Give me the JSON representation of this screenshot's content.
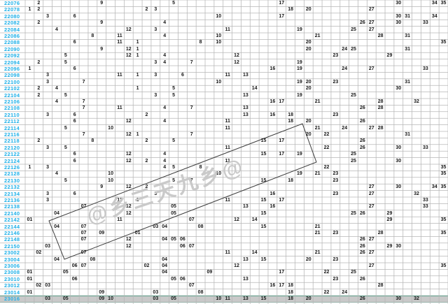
{
  "chart_data": {
    "type": "table",
    "title": "Lottery trend chart (issues 22076-23016, even issues)",
    "layout_hint": "47 number columns: columns 1-12 = zone of numbers 01-12 (2 hits per draw), columns 13-47 = zone of numbers 01-35 (5 hits per draw); each drawn number is printed in its own column; last gray row is a highlighted selection row",
    "sections": {
      "zone1_numbers": 12,
      "zone2_numbers": 35
    },
    "watermark_text": "@乡三天九乡@",
    "colors": {
      "row_label": "#1fb0e8",
      "grid_line": "#b6b6b6",
      "number": "#161616",
      "highlight_row_bg": "#c9c9c9",
      "highlight_row_border": "#35a07c",
      "trend_line": "#3c3c3c",
      "background": "#ffffff"
    },
    "trend_parallelogram_points": "70,316 432,177 452,232 92,371",
    "rows": [
      {
        "issue": "22076",
        "zone1": [
          2,
          9
        ],
        "zone2": [
          5,
          17,
          30,
          34,
          35
        ],
        "padded": false,
        "highlight": false
      },
      {
        "issue": "22078",
        "zone1": [
          1,
          2
        ],
        "zone2": [
          2,
          3,
          18,
          20,
          27
        ],
        "padded": false,
        "highlight": false
      },
      {
        "issue": "22080",
        "zone1": [
          3,
          6
        ],
        "zone2": [
          10,
          17,
          30,
          31,
          34
        ],
        "padded": false,
        "highlight": false
      },
      {
        "issue": "22082",
        "zone1": [
          2,
          9
        ],
        "zone2": [
          4,
          26,
          27,
          30,
          33
        ],
        "padded": false,
        "highlight": false
      },
      {
        "issue": "22084",
        "zone1": [
          4,
          12
        ],
        "zone2": [
          3,
          11,
          19,
          25,
          27
        ],
        "padded": false,
        "highlight": false
      },
      {
        "issue": "22086",
        "zone1": [
          8,
          11
        ],
        "zone2": [
          4,
          10,
          21,
          28,
          31
        ],
        "padded": false,
        "highlight": false
      },
      {
        "issue": "22088",
        "zone1": [
          6,
          11
        ],
        "zone2": [
          1,
          8,
          10,
          20,
          35
        ],
        "padded": false,
        "highlight": false
      },
      {
        "issue": "22090",
        "zone1": [
          9,
          12
        ],
        "zone2": [
          1,
          20,
          24,
          25,
          31
        ],
        "padded": false,
        "highlight": false
      },
      {
        "issue": "22092",
        "zone1": [
          5,
          12
        ],
        "zone2": [
          1,
          4,
          12,
          23,
          29
        ],
        "padded": false,
        "highlight": false
      },
      {
        "issue": "22094",
        "zone1": [
          2,
          5
        ],
        "zone2": [
          3,
          4,
          7,
          12,
          19
        ],
        "padded": false,
        "highlight": false
      },
      {
        "issue": "22096",
        "zone1": [
          1,
          6
        ],
        "zone2": [
          16,
          19,
          24,
          27,
          33
        ],
        "padded": false,
        "highlight": false
      },
      {
        "issue": "22098",
        "zone1": [
          3,
          11
        ],
        "zone2": [
          1,
          3,
          6,
          11,
          13
        ],
        "padded": false,
        "highlight": false
      },
      {
        "issue": "22100",
        "zone1": [
          3,
          7
        ],
        "zone2": [
          10,
          19,
          20,
          23,
          31
        ],
        "padded": false,
        "highlight": false
      },
      {
        "issue": "22102",
        "zone1": [
          2,
          4
        ],
        "zone2": [
          1,
          5,
          14,
          20,
          30
        ],
        "padded": false,
        "highlight": false
      },
      {
        "issue": "22104",
        "zone1": [
          2,
          5
        ],
        "zone2": [
          3,
          5,
          13,
          19,
          25
        ],
        "padded": false,
        "highlight": false
      },
      {
        "issue": "22106",
        "zone1": [
          4,
          7
        ],
        "zone2": [
          16,
          17,
          21,
          28,
          32
        ],
        "padded": false,
        "highlight": false
      },
      {
        "issue": "22108",
        "zone1": [
          7,
          11
        ],
        "zone2": [
          4,
          7,
          13,
          26,
          28
        ],
        "padded": false,
        "highlight": false
      },
      {
        "issue": "22110",
        "zone1": [
          3,
          6
        ],
        "zone2": [
          2,
          13,
          16,
          18,
          23
        ],
        "padded": false,
        "highlight": false
      },
      {
        "issue": "22112",
        "zone1": [
          6,
          12
        ],
        "zone2": [
          4,
          11,
          18,
          20,
          26
        ],
        "padded": false,
        "highlight": false
      },
      {
        "issue": "22114",
        "zone1": [
          5,
          10
        ],
        "zone2": [
          11,
          21,
          24,
          27,
          28
        ],
        "padded": false,
        "highlight": false
      },
      {
        "issue": "22116",
        "zone1": [
          7,
          12
        ],
        "zone2": [
          1,
          7,
          20,
          22,
          31
        ],
        "padded": false,
        "highlight": false
      },
      {
        "issue": "22118",
        "zone1": [
          2,
          8
        ],
        "zone2": [
          2,
          5,
          15,
          17,
          26
        ],
        "padded": false,
        "highlight": false
      },
      {
        "issue": "22120",
        "zone1": [
          3,
          5
        ],
        "zone2": [
          11,
          22,
          26,
          30,
          33
        ],
        "padded": false,
        "highlight": false
      },
      {
        "issue": "22122",
        "zone1": [
          6,
          12
        ],
        "zone2": [
          4,
          15,
          17,
          19,
          25
        ],
        "padded": false,
        "highlight": false
      },
      {
        "issue": "22124",
        "zone1": [
          6,
          12
        ],
        "zone2": [
          2,
          4,
          11,
          25,
          30
        ],
        "padded": false,
        "highlight": false
      },
      {
        "issue": "22126",
        "zone1": [
          1,
          3
        ],
        "zone2": [
          4,
          5,
          8,
          22,
          35
        ],
        "padded": false,
        "highlight": false
      },
      {
        "issue": "22128",
        "zone1": [
          4,
          10
        ],
        "zone2": [
          10,
          19,
          21,
          23,
          35
        ],
        "padded": false,
        "highlight": false
      },
      {
        "issue": "22130",
        "zone1": [
          5,
          10
        ],
        "zone2": [
          5,
          7,
          15,
          18,
          23
        ],
        "padded": false,
        "highlight": false
      },
      {
        "issue": "22132",
        "zone1": [
          9,
          12
        ],
        "zone2": [
          2,
          27,
          30,
          34,
          35
        ],
        "padded": false,
        "highlight": false
      },
      {
        "issue": "22134",
        "zone1": [
          3,
          6
        ],
        "zone2": [
          3,
          16,
          23,
          27,
          32
        ],
        "padded": false,
        "highlight": false
      },
      {
        "issue": "22136",
        "zone1": [
          3,
          11
        ],
        "zone2": [
          1,
          11,
          15,
          17,
          33
        ],
        "padded": false,
        "highlight": false
      },
      {
        "issue": "22138",
        "zone1": [
          7,
          12
        ],
        "zone2": [
          5,
          13,
          16,
          27,
          33
        ],
        "padded": true,
        "highlight": false
      },
      {
        "issue": "22140",
        "zone1": [
          4,
          12
        ],
        "zone2": [
          5,
          15,
          25,
          26,
          29
        ],
        "padded": true,
        "highlight": false
      },
      {
        "issue": "22142",
        "zone1": [
          1,
          11
        ],
        "zone2": [
          7,
          12,
          14,
          29,
          35
        ],
        "padded": true,
        "highlight": false
      },
      {
        "issue": "22144",
        "zone1": [
          4,
          7
        ],
        "zone2": [
          3,
          4,
          8,
          15,
          21
        ],
        "padded": true,
        "highlight": false
      },
      {
        "issue": "22146",
        "zone1": [
          7,
          9
        ],
        "zone2": [
          1,
          21,
          23,
          28,
          35
        ],
        "padded": true,
        "highlight": false
      },
      {
        "issue": "22148",
        "zone1": [
          7,
          12
        ],
        "zone2": [
          4,
          5,
          6,
          26,
          27
        ],
        "padded": true,
        "highlight": false
      },
      {
        "issue": "22150",
        "zone1": [
          3,
          12
        ],
        "zone2": [
          6,
          7,
          26,
          29,
          30
        ],
        "padded": true,
        "highlight": false
      },
      {
        "issue": "23002",
        "zone1": [
          2,
          7
        ],
        "zone2": [
          11,
          14,
          21,
          26,
          27
        ],
        "padded": true,
        "highlight": false
      },
      {
        "issue": "23004",
        "zone1": [
          4,
          8
        ],
        "zone2": [
          4,
          13,
          15,
          20,
          23
        ],
        "padded": true,
        "highlight": false
      },
      {
        "issue": "23006",
        "zone1": [
          6,
          7
        ],
        "zone2": [
          2,
          4,
          12,
          27,
          35
        ],
        "padded": true,
        "highlight": false
      },
      {
        "issue": "23008",
        "zone1": [
          1,
          5
        ],
        "zone2": [
          4,
          9,
          17,
          22,
          25
        ],
        "padded": true,
        "highlight": false
      },
      {
        "issue": "23010",
        "zone1": [
          1,
          6
        ],
        "zone2": [
          5,
          6,
          13,
          23,
          26
        ],
        "padded": true,
        "highlight": false
      },
      {
        "issue": "23012",
        "zone1": [
          2,
          3
        ],
        "zone2": [
          7,
          16,
          17,
          18,
          28
        ],
        "padded": true,
        "highlight": false
      },
      {
        "issue": "23014",
        "zone1": [
          1,
          9
        ],
        "zone2": [
          3,
          8,
          18,
          22,
          24
        ],
        "padded": true,
        "highlight": false
      },
      {
        "issue": "23016",
        "zone1": [
          3,
          5,
          9,
          10
        ],
        "zone2": [
          3,
          5,
          10,
          11,
          13,
          15,
          18,
          20,
          26,
          30,
          32
        ],
        "padded": true,
        "highlight": true
      }
    ]
  }
}
